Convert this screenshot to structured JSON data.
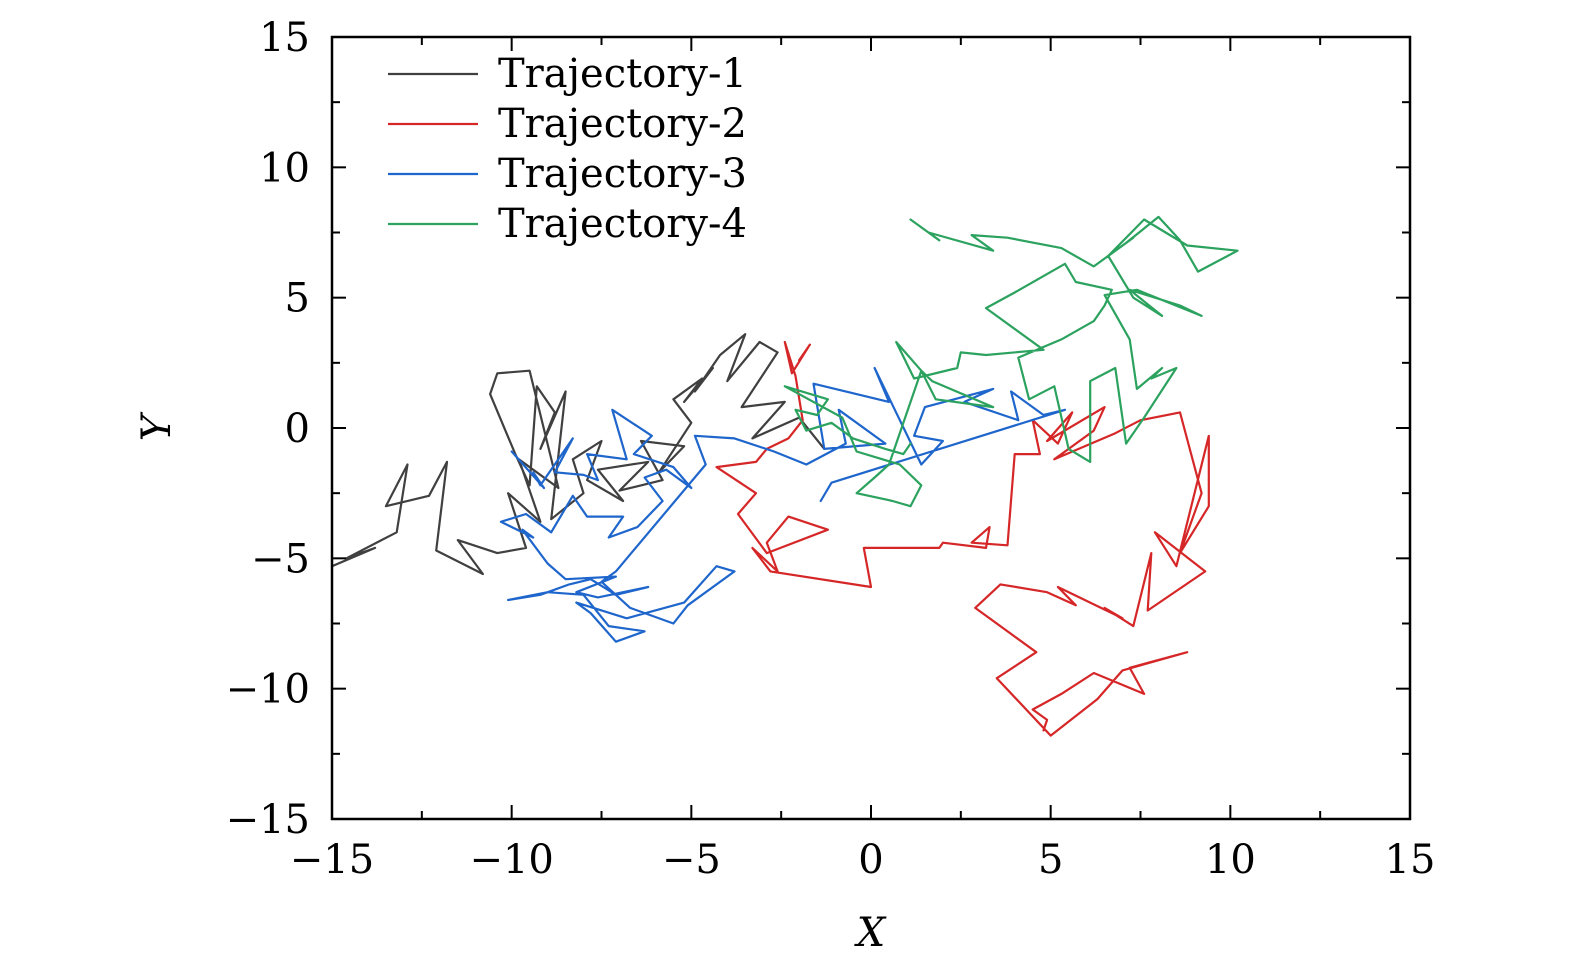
{
  "chart_data": {
    "type": "line",
    "xlabel": "X",
    "ylabel": "Y",
    "xlim": [
      -15,
      15
    ],
    "ylim": [
      -15,
      15
    ],
    "xticks": [
      -15,
      -10,
      -5,
      0,
      5,
      10,
      15
    ],
    "yticks": [
      -15,
      -10,
      -5,
      0,
      5,
      10,
      15
    ],
    "xtick_labels": [
      "−15",
      "−10",
      "−5",
      "0",
      "5",
      "10",
      "15"
    ],
    "ytick_labels": [
      "−15",
      "−10",
      "−5",
      "0",
      "5",
      "10",
      "15"
    ],
    "grid": false,
    "legend_position": "top-left",
    "series": [
      {
        "name": "Trajectory-1",
        "color": "#404040",
        "x": [
          -15.0,
          -13.8,
          -14.6,
          -13.2,
          -12.9,
          -13.5,
          -12.3,
          -11.8,
          -12.1,
          -10.8,
          -11.5,
          -10.4,
          -9.6,
          -10.1,
          -9.2,
          -9.8,
          -8.7,
          -9.5,
          -10.4,
          -10.6,
          -9.9,
          -9.5,
          -9.3,
          -8.8,
          -9.2,
          -8.5,
          -8.9,
          -8.0,
          -8.3,
          -7.5,
          -7.9,
          -6.9,
          -7.6,
          -6.2,
          -7.0,
          -5.8,
          -6.4,
          -5.2,
          -5.9,
          -5.0,
          -5.5,
          -4.7,
          -5.2,
          -4.4,
          -4.9,
          -4.2,
          -3.5,
          -4.0,
          -3.1,
          -2.6,
          -3.6,
          -2.4,
          -3.3,
          -2.0,
          -1.3
        ],
        "y": [
          -5.3,
          -4.6,
          -5.0,
          -4.0,
          -1.4,
          -3.0,
          -2.6,
          -1.3,
          -4.7,
          -5.6,
          -4.3,
          -4.8,
          -4.6,
          -2.5,
          -3.6,
          -1.2,
          -2.3,
          2.2,
          2.1,
          1.3,
          -1.0,
          -2.2,
          1.6,
          0.6,
          -0.8,
          1.4,
          -3.5,
          -2.5,
          -1.2,
          -0.5,
          -2.0,
          -2.8,
          -1.6,
          -1.3,
          -2.4,
          -2.0,
          -0.5,
          -0.7,
          -1.7,
          0.2,
          1.1,
          1.9,
          1.0,
          2.3,
          1.4,
          2.8,
          3.6,
          1.8,
          3.3,
          2.9,
          0.8,
          1.0,
          -0.4,
          0.4,
          -0.8
        ]
      },
      {
        "name": "Trajectory-2",
        "color": "#d62728",
        "x": [
          -2.0,
          -1.7,
          -2.2,
          -2.4,
          -2.1,
          -1.9,
          -2.3,
          -2.9,
          -3.2,
          -4.3,
          -3.2,
          -3.7,
          -2.9,
          -1.2,
          -2.3,
          -2.9,
          -2.6,
          -3.3,
          -2.8,
          0.0,
          -0.2,
          1.9,
          2.0,
          3.2,
          3.3,
          2.8,
          3.8,
          4.0,
          4.7,
          4.5,
          5.2,
          5.6,
          4.9,
          6.5,
          6.2,
          5.1,
          6.8,
          7.5,
          8.6,
          9.2,
          8.6,
          9.4,
          9.4,
          8.5,
          7.9,
          9.3,
          7.7,
          7.8,
          7.3,
          6.5,
          7.0,
          5.2,
          5.7,
          4.9,
          3.6,
          2.9,
          4.6,
          3.5,
          5.0,
          6.3,
          7.0,
          8.8,
          7.2,
          7.6,
          6.2,
          5.3,
          4.5,
          4.9,
          4.8
        ],
        "y": [
          2.6,
          3.2,
          2.1,
          3.3,
          2.0,
          0.3,
          -0.4,
          -0.8,
          -1.3,
          -1.5,
          -2.5,
          -3.3,
          -4.8,
          -3.9,
          -3.4,
          -4.4,
          -5.5,
          -4.6,
          -5.5,
          -6.1,
          -4.6,
          -4.6,
          -4.4,
          -4.6,
          -3.8,
          -4.4,
          -4.5,
          -1.0,
          -1.0,
          0.3,
          -0.6,
          0.6,
          -0.5,
          0.8,
          -0.1,
          -1.2,
          -0.2,
          0.3,
          0.6,
          -2.5,
          -4.8,
          -3.0,
          -0.3,
          -5.3,
          -4.0,
          -5.5,
          -7.0,
          -4.8,
          -7.6,
          -6.9,
          -7.3,
          -6.1,
          -6.8,
          -6.3,
          -6.0,
          -6.9,
          -8.6,
          -9.6,
          -11.8,
          -10.4,
          -9.3,
          -8.6,
          -9.2,
          -10.2,
          -9.4,
          -10.2,
          -10.8,
          -11.2,
          -11.6
        ]
      },
      {
        "name": "Trajectory-3",
        "color": "#1f66cc",
        "x": [
          -10.0,
          -9.1,
          -9.4,
          -9.2,
          -8.3,
          -8.8,
          -8.0,
          -7.6,
          -7.9,
          -6.8,
          -7.2,
          -6.1,
          -6.6,
          -5.5,
          -5.0,
          -5.7,
          -6.3,
          -5.8,
          -6.5,
          -7.3,
          -6.9,
          -7.9,
          -8.3,
          -8.9,
          -9.6,
          -10.3,
          -9.4,
          -9.7,
          -9.0,
          -8.5,
          -7.1,
          -8.2,
          -7.6,
          -6.2,
          -7.1,
          -7.8,
          -8.4,
          -9.2,
          -10.1,
          -9.0,
          -8.0,
          -7.3,
          -6.3,
          -7.1,
          -7.8,
          -8.2,
          -6.8,
          -5.2,
          -4.3,
          -3.8,
          -5.1,
          -5.5,
          -6.7,
          -7.5,
          -7.1,
          -4.6,
          -4.9,
          -3.8,
          -2.7,
          -1.8,
          -0.7,
          -0.9,
          0.4,
          -1.3,
          -1.6,
          0.5,
          0.1,
          1.4,
          2.0,
          1.2,
          1.5,
          3.4,
          2.6,
          4.1,
          3.9,
          4.8,
          5.4,
          -1.1,
          -1.4
        ],
        "y": [
          -0.9,
          -2.3,
          -1.7,
          -2.2,
          -0.4,
          -1.7,
          -1.8,
          -2.0,
          -1.0,
          -1.2,
          0.7,
          -0.3,
          -1.0,
          -1.5,
          -2.3,
          -1.6,
          -1.9,
          -2.8,
          -3.8,
          -4.2,
          -3.4,
          -3.4,
          -2.6,
          -4.0,
          -3.3,
          -3.6,
          -4.2,
          -3.9,
          -5.2,
          -5.8,
          -5.7,
          -6.3,
          -6.5,
          -6.1,
          -6.4,
          -5.8,
          -6.0,
          -6.4,
          -6.6,
          -6.3,
          -6.4,
          -7.6,
          -7.8,
          -8.2,
          -7.1,
          -6.7,
          -7.3,
          -6.7,
          -5.3,
          -5.5,
          -6.8,
          -7.5,
          -6.9,
          -5.9,
          -5.5,
          -1.4,
          -0.3,
          -0.4,
          -0.9,
          -1.4,
          -0.6,
          0.7,
          -0.6,
          -0.8,
          1.7,
          1.0,
          2.3,
          -1.4,
          -0.5,
          -0.3,
          0.8,
          1.5,
          1.0,
          0.3,
          1.4,
          0.5,
          0.7,
          -2.1,
          -2.8
        ]
      },
      {
        "name": "Trajectory-4",
        "color": "#2ca25f",
        "x": [
          1.1,
          1.9,
          1.6,
          3.4,
          2.8,
          3.8,
          5.3,
          6.2,
          7.3,
          6.6,
          7.6,
          8.8,
          10.2,
          9.1,
          8.6,
          8.0,
          7.1,
          6.6,
          7.3,
          8.1,
          7.2,
          8.6,
          9.2,
          7.4,
          6.5,
          7.2,
          7.4,
          8.1,
          7.8,
          8.5,
          7.6,
          7.1,
          6.8,
          6.1,
          6.1,
          5.5,
          5.1,
          4.4,
          4.1,
          5.3,
          6.2,
          6.5,
          6.7,
          5.7,
          5.4,
          4.0,
          3.2,
          4.8,
          3.2,
          2.5,
          2.4,
          1.2,
          0.7,
          1.4,
          1.8,
          3.4,
          1.7,
          1.4,
          0.5,
          0.1,
          -0.4,
          0.6,
          1.1,
          1.4,
          0.8,
          -0.4,
          -0.8,
          -2.4,
          -1.2,
          -1.5,
          -2.1,
          -1.8,
          -1.1,
          -0.5,
          0.4,
          0.9,
          1.1
        ],
        "y": [
          8.0,
          7.2,
          7.5,
          6.8,
          7.4,
          7.3,
          6.9,
          6.2,
          7.3,
          6.6,
          8.0,
          7.0,
          6.8,
          6.0,
          7.2,
          8.1,
          7.1,
          6.6,
          5.0,
          4.3,
          5.3,
          4.7,
          4.3,
          5.3,
          5.1,
          3.4,
          1.5,
          2.3,
          1.9,
          2.3,
          0.4,
          -0.6,
          2.3,
          1.8,
          -1.3,
          -0.8,
          1.6,
          1.1,
          2.7,
          3.4,
          4.1,
          4.7,
          5.3,
          5.6,
          6.3,
          5.2,
          4.6,
          3.0,
          2.8,
          2.9,
          2.3,
          1.9,
          3.3,
          2.2,
          1.1,
          0.8,
          1.8,
          2.2,
          -1.4,
          -1.9,
          -2.5,
          -2.8,
          -3.0,
          -2.2,
          -1.4,
          -0.9,
          0.4,
          1.6,
          1.1,
          0.5,
          0.7,
          -0.1,
          0.2,
          -0.4,
          -0.8,
          -1.0,
          -0.6
        ]
      }
    ]
  }
}
